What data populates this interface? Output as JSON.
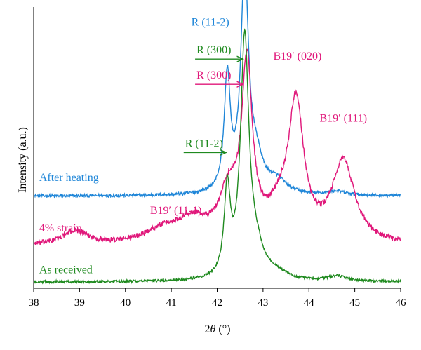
{
  "chart_data": {
    "type": "line",
    "xlabel_prefix": "2",
    "xlabel_var": "θ",
    "xlabel_unit": " (°)",
    "ylabel": "Intensity (a.u.)",
    "xlim": [
      38,
      46
    ],
    "x_ticks": [
      "38",
      "39",
      "40",
      "41",
      "42",
      "43",
      "44",
      "45",
      "46"
    ],
    "yaxis_ticks": "none",
    "grid": false,
    "legend": "none",
    "series": [
      {
        "name": "After heating",
        "color": "#1f86d8",
        "baseline": 0.365,
        "noise": 0.006,
        "peaks": [
          {
            "x": 42.22,
            "h": 0.45,
            "w": 0.08
          },
          {
            "x": 42.6,
            "h": 0.875,
            "w": 0.1
          },
          {
            "x": 42.85,
            "h": 0.12,
            "w": 0.18
          },
          {
            "x": 43.3,
            "h": 0.05,
            "w": 0.25
          },
          {
            "x": 44.6,
            "h": 0.015,
            "w": 0.25
          }
        ]
      },
      {
        "name": "4% strain",
        "color": "#e0177a",
        "baseline": 0.165,
        "noise": 0.01,
        "peaks": [
          {
            "x": 38.9,
            "h": 0.055,
            "w": 0.35
          },
          {
            "x": 40.8,
            "h": 0.05,
            "w": 0.5
          },
          {
            "x": 41.45,
            "h": 0.085,
            "w": 0.4
          },
          {
            "x": 42.25,
            "h": 0.18,
            "w": 0.25
          },
          {
            "x": 42.65,
            "h": 0.68,
            "w": 0.14
          },
          {
            "x": 43.72,
            "h": 0.53,
            "w": 0.2
          },
          {
            "x": 43.35,
            "h": 0.1,
            "w": 0.3
          },
          {
            "x": 44.75,
            "h": 0.32,
            "w": 0.3
          }
        ]
      },
      {
        "name": "As received",
        "color": "#1f8a1f",
        "baseline": 0.025,
        "noise": 0.005,
        "peaks": [
          {
            "x": 42.22,
            "h": 0.34,
            "w": 0.08
          },
          {
            "x": 42.6,
            "h": 0.94,
            "w": 0.11
          },
          {
            "x": 42.85,
            "h": 0.1,
            "w": 0.2
          },
          {
            "x": 43.3,
            "h": 0.025,
            "w": 0.25
          },
          {
            "x": 44.6,
            "h": 0.02,
            "w": 0.25
          }
        ]
      }
    ],
    "annotations": [
      {
        "key": "r300_blue",
        "text": "R (300)",
        "color": "#1f86d8",
        "x": 42.55,
        "y": 1.335
      },
      {
        "key": "r112_blue",
        "text": "R (11-2)",
        "color": "#1f86d8",
        "x": 41.85,
        "y": 1.04
      },
      {
        "key": "r300_green",
        "text": "R (300)",
        "color": "#1f8a1f",
        "x": 41.55,
        "y": 0.93,
        "arrow_to": 42.55
      },
      {
        "key": "r300_pink",
        "text": "R (300)",
        "color": "#e0177a",
        "x": 41.55,
        "y": 0.83,
        "arrow_to": 42.55
      },
      {
        "key": "r112_green",
        "text": "R (11-2)",
        "color": "#1f8a1f",
        "x": 41.3,
        "y": 0.56,
        "arrow_to": 42.18
      },
      {
        "key": "b020",
        "text": "B19′ (020)",
        "color": "#e0177a",
        "x": 43.75,
        "y": 0.905
      },
      {
        "key": "b111",
        "text": "B19′ (111)",
        "color": "#e0177a",
        "x": 44.75,
        "y": 0.66
      },
      {
        "key": "b111m",
        "text": "B19′ (11-1)",
        "color": "#e0177a",
        "x": 41.1,
        "y": 0.295
      },
      {
        "key": "lbl_heat",
        "text": "After heating",
        "color": "#1f86d8",
        "x": 38.12,
        "y": 0.425
      },
      {
        "key": "lbl_strain",
        "text": "4% strain",
        "color": "#e0177a",
        "x": 38.12,
        "y": 0.225
      },
      {
        "key": "lbl_recv",
        "text": "As received",
        "color": "#1f8a1f",
        "x": 38.12,
        "y": 0.06
      }
    ]
  }
}
